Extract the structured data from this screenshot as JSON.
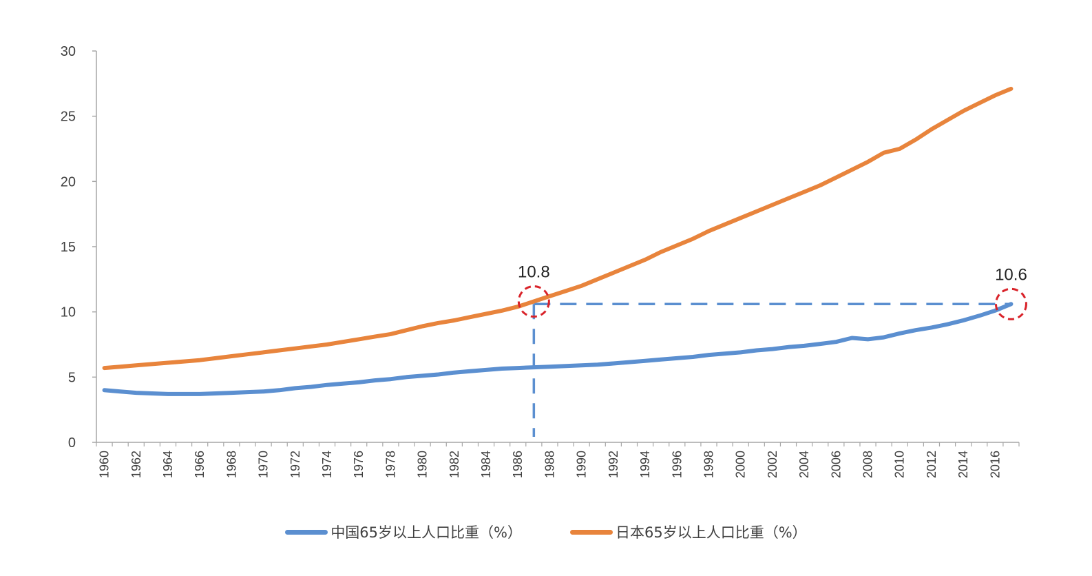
{
  "chart_data": {
    "type": "line",
    "title": "",
    "xlabel": "",
    "ylabel": "",
    "ylim": [
      0,
      30
    ],
    "yticks": [
      0,
      5,
      10,
      15,
      20,
      25,
      30
    ],
    "grid": false,
    "legend_position": "bottom",
    "x": [
      1960,
      1961,
      1962,
      1963,
      1964,
      1965,
      1966,
      1967,
      1968,
      1969,
      1970,
      1971,
      1972,
      1973,
      1974,
      1975,
      1976,
      1977,
      1978,
      1979,
      1980,
      1981,
      1982,
      1983,
      1984,
      1985,
      1986,
      1987,
      1988,
      1989,
      1990,
      1991,
      1992,
      1993,
      1994,
      1995,
      1996,
      1997,
      1998,
      1999,
      2000,
      2001,
      2002,
      2003,
      2004,
      2005,
      2006,
      2007,
      2008,
      2009,
      2010,
      2011,
      2012,
      2013,
      2014,
      2015,
      2016,
      2017
    ],
    "xtick_labels": [
      "1960",
      "1962",
      "1964",
      "1966",
      "1968",
      "1970",
      "1972",
      "1974",
      "1976",
      "1978",
      "1980",
      "1982",
      "1984",
      "1986",
      "1988",
      "1990",
      "1992",
      "1994",
      "1996",
      "1998",
      "2000",
      "2002",
      "2004",
      "2006",
      "2008",
      "2010",
      "2012",
      "2014",
      "2016"
    ],
    "series": [
      {
        "name": "中国65岁以上人口比重（%）",
        "color": "#5b8fd0",
        "values": [
          4.0,
          3.9,
          3.8,
          3.75,
          3.7,
          3.7,
          3.7,
          3.75,
          3.8,
          3.85,
          3.9,
          4.0,
          4.15,
          4.25,
          4.4,
          4.5,
          4.6,
          4.75,
          4.85,
          5.0,
          5.1,
          5.2,
          5.35,
          5.45,
          5.55,
          5.65,
          5.7,
          5.75,
          5.8,
          5.85,
          5.9,
          5.95,
          6.05,
          6.15,
          6.25,
          6.35,
          6.45,
          6.55,
          6.7,
          6.8,
          6.9,
          7.05,
          7.15,
          7.3,
          7.4,
          7.55,
          7.7,
          8.0,
          7.9,
          8.05,
          8.35,
          8.6,
          8.8,
          9.05,
          9.35,
          9.7,
          10.1,
          10.6
        ]
      },
      {
        "name": "日本65岁以上人口比重（%）",
        "color": "#e8843c",
        "values": [
          5.7,
          5.8,
          5.9,
          6.0,
          6.1,
          6.2,
          6.3,
          6.45,
          6.6,
          6.75,
          6.9,
          7.05,
          7.2,
          7.35,
          7.5,
          7.7,
          7.9,
          8.1,
          8.3,
          8.6,
          8.9,
          9.15,
          9.35,
          9.6,
          9.85,
          10.1,
          10.4,
          10.8,
          11.2,
          11.6,
          12.0,
          12.5,
          13.0,
          13.5,
          14.0,
          14.6,
          15.1,
          15.6,
          16.2,
          16.7,
          17.2,
          17.7,
          18.2,
          18.7,
          19.2,
          19.7,
          20.3,
          20.9,
          21.5,
          22.2,
          22.5,
          23.2,
          24.0,
          24.7,
          25.4,
          26.0,
          26.6,
          27.1
        ]
      }
    ],
    "annotations": [
      {
        "label": "10.8",
        "x": 1987,
        "y": 10.8,
        "series": "日本65岁以上人口比重（%）"
      },
      {
        "label": "10.6",
        "x": 2017,
        "y": 10.6,
        "series": "中国65岁以上人口比重（%）"
      }
    ],
    "highlight_color": "#d9232a"
  }
}
